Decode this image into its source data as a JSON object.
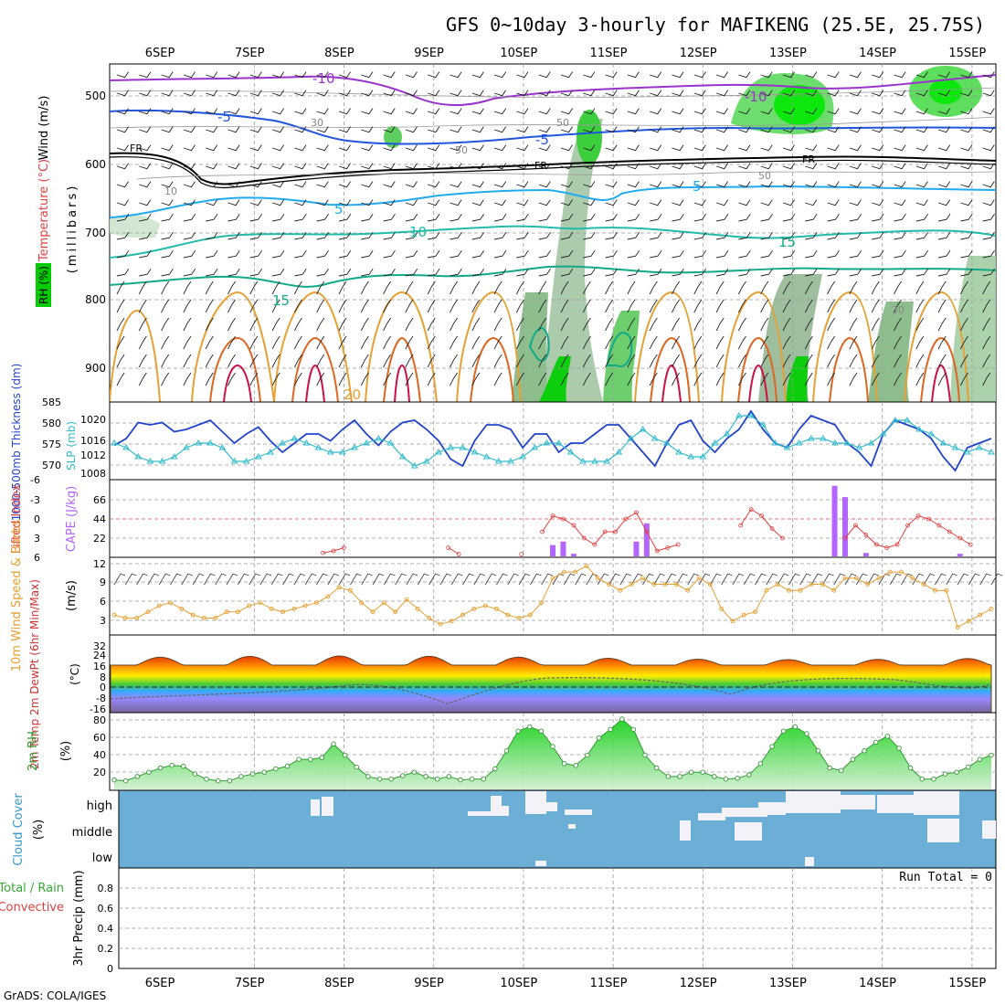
{
  "title": "GFS 0~10day 3-hourly for MAFIKENG (25.5E, 25.75S)",
  "footer": "GrADS: COLA/IGES",
  "run_total": "Run Total = 0",
  "dates": [
    "6SEP",
    "7SEP",
    "8SEP",
    "9SEP",
    "10SEP",
    "11SEP",
    "12SEP",
    "13SEP",
    "14SEP",
    "15SEP"
  ],
  "colors": {
    "rh_green": "#00cc00",
    "thickness_blue": "#2244cc",
    "slp_cyan": "#33bbcc",
    "cape_purple": "#b366ff",
    "lifted_red": "#e04040",
    "wind_orange": "#e6a033",
    "cloud_blue": "#6baed6",
    "rh2m_green": "#339933"
  },
  "panels": {
    "upper": {
      "y_label": "(millibars)",
      "legend_wind": "Wind (m/s)",
      "legend_temp": "Temperature (°C)",
      "legend_rh": "RH (%)",
      "ticks": [
        "500",
        "600",
        "700",
        "800",
        "900"
      ],
      "labels": {
        "m10a": "-10",
        "m10b": "-10",
        "m5a": "-5",
        "m5b": "-5",
        "fr1": "FR",
        "fr2": "FR",
        "fr3": "FR",
        "p5a": "5",
        "p5b": "5",
        "p10": "10",
        "p15a": "15",
        "p15b": "15",
        "p20": "20",
        "rh10": "10",
        "rh30a": "30",
        "rh30b": "30",
        "rh50a": "50",
        "rh50b": "50",
        "rh50c": "50"
      }
    },
    "pressure": {
      "label_thickness": "1000-500mb Thickness (dm)",
      "label_slp": "SLP (mb)",
      "ticks_left": [
        "585",
        "580",
        "575",
        "570"
      ],
      "ticks_right": [
        "1020",
        "1016",
        "1012",
        "1008"
      ]
    },
    "cape": {
      "label_li": "Lifted Index",
      "label_cape": "CAPE (J/kg)",
      "ticks_left": [
        "-6",
        "-3",
        "0",
        "3",
        "6"
      ],
      "ticks_right": [
        "66",
        "44",
        "22"
      ]
    },
    "wind": {
      "label": "10m Wind Speed & Barbs",
      "unit": "(m/s)",
      "ticks": [
        "12",
        "9",
        "6",
        "3"
      ]
    },
    "temp": {
      "label": "2m Temp 2m DewPt (6hr Min/Max)",
      "unit": "(°C)",
      "ticks": [
        "32",
        "24",
        "16",
        "8",
        "0",
        "-8",
        "-16"
      ]
    },
    "rh2m": {
      "label": "2m RH",
      "unit": "(%)",
      "ticks": [
        "80",
        "60",
        "40",
        "20"
      ]
    },
    "cloud": {
      "label": "Cloud Cover",
      "unit": "(%)",
      "levels": [
        "high",
        "middle",
        "low"
      ]
    },
    "precip": {
      "label_main": "Total / Rain",
      "label_conv": "Convective",
      "label_unit": "3hr Precip (mm)",
      "ticks": [
        "0.8",
        "0.6",
        "0.4",
        "0.2",
        "0"
      ]
    }
  },
  "chart_data": [
    {
      "type": "line",
      "title": "1000-500mb Thickness (dm) & SLP (mb)",
      "series": [
        {
          "name": "1000-500mb Thickness (dm)",
          "values": [
            575.5,
            577,
            580.5,
            580,
            580.5,
            578.5,
            579,
            580,
            581,
            578.5,
            576,
            578,
            579.5,
            576.5,
            574,
            576,
            578,
            578,
            576.5,
            579,
            581,
            578,
            575.5,
            578.5,
            580.5,
            581,
            579,
            576.5,
            572.5,
            571,
            576.5,
            580,
            580,
            579,
            575,
            578,
            578,
            574,
            576,
            576,
            578,
            580,
            580,
            577,
            574,
            571,
            576,
            580,
            581,
            576.5,
            574,
            577,
            579,
            583,
            579,
            576,
            575,
            579,
            582,
            581,
            580,
            576,
            574,
            571,
            578,
            581,
            580,
            579,
            577,
            573,
            570,
            575,
            576,
            577
          ]
        },
        {
          "name": "SLP (mb)",
          "values": [
            1014,
            1013,
            1011,
            1010,
            1010,
            1011,
            1013,
            1014,
            1014,
            1013,
            1010,
            1010,
            1011,
            1012,
            1014,
            1015,
            1014,
            1013,
            1012,
            1012,
            1013,
            1014,
            1015,
            1014,
            1011,
            1009,
            1010,
            1012,
            1013,
            1013,
            1012,
            1011,
            1010,
            1010,
            1011,
            1013,
            1014,
            1014,
            1012,
            1010,
            1010,
            1010,
            1012,
            1015,
            1017,
            1015,
            1014,
            1012,
            1011,
            1011,
            1014,
            1016,
            1020,
            1020,
            1018,
            1014,
            1013,
            1014,
            1015,
            1015,
            1014,
            1014,
            1013,
            1014,
            1016,
            1019,
            1019,
            1017,
            1016,
            1014,
            1013,
            1012,
            1013,
            1012
          ]
        }
      ]
    },
    {
      "type": "bar",
      "title": "Lifted Index & CAPE (J/kg)",
      "series": [
        {
          "name": "Lifted Index",
          "values": [
            null,
            null,
            null,
            null,
            null,
            null,
            null,
            null,
            null,
            null,
            null,
            null,
            null,
            null,
            null,
            null,
            null,
            null,
            null,
            null,
            5.3,
            5,
            4.5,
            null,
            null,
            null,
            null,
            null,
            null,
            null,
            null,
            null,
            4.5,
            5.5,
            null,
            null,
            null,
            null,
            null,
            5.5,
            null,
            2,
            -0.5,
            0,
            1,
            3,
            4,
            2,
            2,
            0,
            -1,
            2,
            5,
            4.5,
            4,
            null,
            null,
            null,
            null,
            null,
            1,
            -1.5,
            -0.5,
            1.5,
            3,
            null,
            null,
            null,
            null,
            null,
            3,
            1,
            2.5,
            4,
            4.5,
            4,
            1,
            -0.5,
            0,
            1,
            2,
            3,
            4,
            null,
            null
          ]
        },
        {
          "name": "CAPE (J/kg)",
          "values": [
            0,
            0,
            0,
            0,
            0,
            0,
            0,
            0,
            0,
            0,
            0,
            0,
            0,
            0,
            0,
            0,
            0,
            0,
            0,
            0,
            0,
            0,
            0,
            0,
            0,
            0,
            0,
            0,
            0,
            0,
            0,
            0,
            0,
            0,
            0,
            0,
            0,
            0,
            0,
            0,
            0,
            0,
            13,
            17,
            3,
            0,
            0,
            0,
            0,
            0,
            17,
            38,
            0,
            0,
            0,
            0,
            0,
            0,
            0,
            0,
            0,
            0,
            0,
            0,
            0,
            0,
            0,
            0,
            0,
            81,
            68,
            0,
            4,
            0,
            0,
            0,
            0,
            0,
            0,
            0,
            0,
            3,
            0,
            0,
            0
          ]
        }
      ]
    },
    {
      "type": "line",
      "title": "10m Wind Speed (m/s)",
      "series": [
        {
          "name": "10m Wind Speed",
          "values": [
            4,
            3.5,
            3.5,
            4.5,
            5.5,
            6,
            5,
            4,
            3.5,
            3.5,
            4.5,
            4.5,
            5.5,
            6,
            5,
            4.5,
            5,
            5.5,
            6,
            7,
            8.5,
            8,
            6,
            4.5,
            6,
            4.5,
            6.5,
            5,
            3.5,
            2.5,
            3,
            4,
            5,
            5.5,
            5,
            4,
            3.5,
            4,
            6,
            10,
            11,
            11,
            12,
            10,
            9,
            8,
            9,
            10,
            9,
            9,
            9,
            8,
            10,
            9,
            5,
            3,
            4,
            4.5,
            8,
            9,
            8,
            8,
            9,
            9,
            8,
            10,
            10,
            9,
            10,
            11,
            11,
            10,
            9,
            8,
            8,
            2,
            3,
            4,
            5
          ]
        }
      ]
    },
    {
      "type": "line",
      "title": "2m RH (%)",
      "series": [
        {
          "name": "2m RH (%)",
          "values": [
            11,
            10,
            15,
            20,
            25,
            28,
            27,
            18,
            12,
            10,
            10,
            15,
            18,
            20,
            24,
            27,
            35,
            35,
            37,
            53,
            40,
            26,
            15,
            12,
            12,
            16,
            20,
            15,
            12,
            15,
            11,
            12,
            12,
            24,
            45,
            68,
            73,
            68,
            50,
            30,
            28,
            40,
            60,
            70,
            82,
            70,
            40,
            25,
            15,
            15,
            20,
            20,
            15,
            12,
            13,
            17,
            30,
            50,
            68,
            73,
            65,
            45,
            25,
            22,
            35,
            45,
            55,
            62,
            48,
            25,
            12,
            12,
            18,
            20,
            26,
            35,
            40
          ]
        }
      ]
    },
    {
      "type": "heatmap",
      "title": "Upper-air Wind, Temperature and RH cross-section",
      "series": [
        {
          "name": "Temperature (°C) contours",
          "values": [
            -10,
            -5,
            0,
            5,
            10,
            15,
            20
          ]
        },
        {
          "name": "RH (%) contours",
          "values": [
            10,
            30,
            50
          ]
        }
      ]
    }
  ]
}
